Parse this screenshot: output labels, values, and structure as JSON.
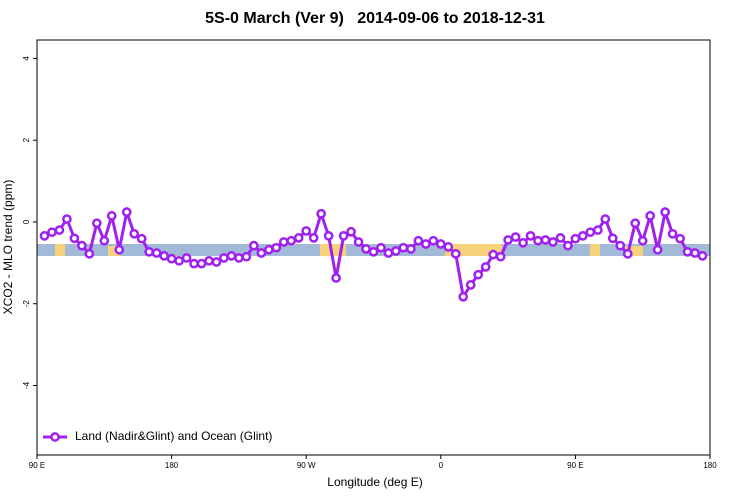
{
  "chart_data": {
    "type": "line",
    "title": "5S-0 March (Ver 9)   2014-09-06 to 2018-12-31",
    "x_label": "Longitude (deg E)",
    "y_label": "XCO2 - MLO trend (ppm)",
    "xlim": [
      90,
      540
    ],
    "ylim": [
      -5.7,
      4.45
    ],
    "xticks": [
      {
        "value": 90,
        "label": "90 E"
      },
      180,
      {
        "value": 270,
        "label": "90 W"
      },
      {
        "value": 360,
        "label": "0"
      },
      {
        "value": 450,
        "label": "90 E"
      },
      {
        "value": 540,
        "label": "180"
      }
    ],
    "yticks": [
      4,
      2,
      0,
      -2,
      -4
    ],
    "legend": "bottom-left",
    "series": [
      {
        "name": "Land (Nadir&Glint) and Ocean (Glint)",
        "color": "#a020f0",
        "x": [
          95,
          100,
          105,
          110,
          115,
          120,
          125,
          130,
          135,
          140,
          145,
          150,
          155,
          160,
          165,
          170,
          175,
          180,
          185,
          190,
          195,
          200,
          205,
          210,
          215,
          220,
          225,
          230,
          235,
          240,
          245,
          250,
          255,
          260,
          265,
          270,
          275,
          280,
          285,
          290,
          295,
          300,
          305,
          310,
          315,
          320,
          325,
          330,
          335,
          340,
          345,
          350,
          355,
          360,
          365,
          370,
          375,
          380,
          385,
          390,
          395,
          400,
          405,
          410,
          415,
          420,
          425,
          430,
          435,
          440,
          445,
          450,
          455,
          460,
          465,
          470,
          475,
          480,
          485,
          490,
          495,
          500,
          505,
          510,
          515,
          520,
          525,
          530,
          535
        ],
        "values": [
          -0.34,
          -0.25,
          -0.2,
          0.07,
          -0.4,
          -0.58,
          -0.78,
          -0.03,
          -0.46,
          0.15,
          -0.68,
          0.24,
          -0.29,
          -0.41,
          -0.73,
          -0.76,
          -0.83,
          -0.9,
          -0.95,
          -0.88,
          -1.02,
          -1.02,
          -0.95,
          -0.98,
          -0.88,
          -0.83,
          -0.88,
          -0.85,
          -0.58,
          -0.76,
          -0.68,
          -0.63,
          -0.49,
          -0.46,
          -0.39,
          -0.22,
          -0.39,
          0.2,
          -0.34,
          -1.37,
          -0.34,
          -0.24,
          -0.49,
          -0.66,
          -0.73,
          -0.63,
          -0.76,
          -0.71,
          -0.63,
          -0.66,
          -0.46,
          -0.54,
          -0.46,
          -0.54,
          -0.61,
          -0.78,
          -1.83,
          -1.54,
          -1.29,
          -1.1,
          -0.8,
          -0.85,
          -0.44,
          -0.37,
          -0.51,
          -0.34,
          -0.46,
          -0.44,
          -0.49,
          -0.39,
          -0.58,
          -0.41,
          -0.34,
          -0.25,
          -0.2,
          0.07,
          -0.4,
          -0.58,
          -0.78,
          -0.03,
          -0.46,
          0.15,
          -0.68,
          0.24,
          -0.29,
          -0.41,
          -0.73,
          -0.76,
          -0.83
        ]
      }
    ]
  }
}
